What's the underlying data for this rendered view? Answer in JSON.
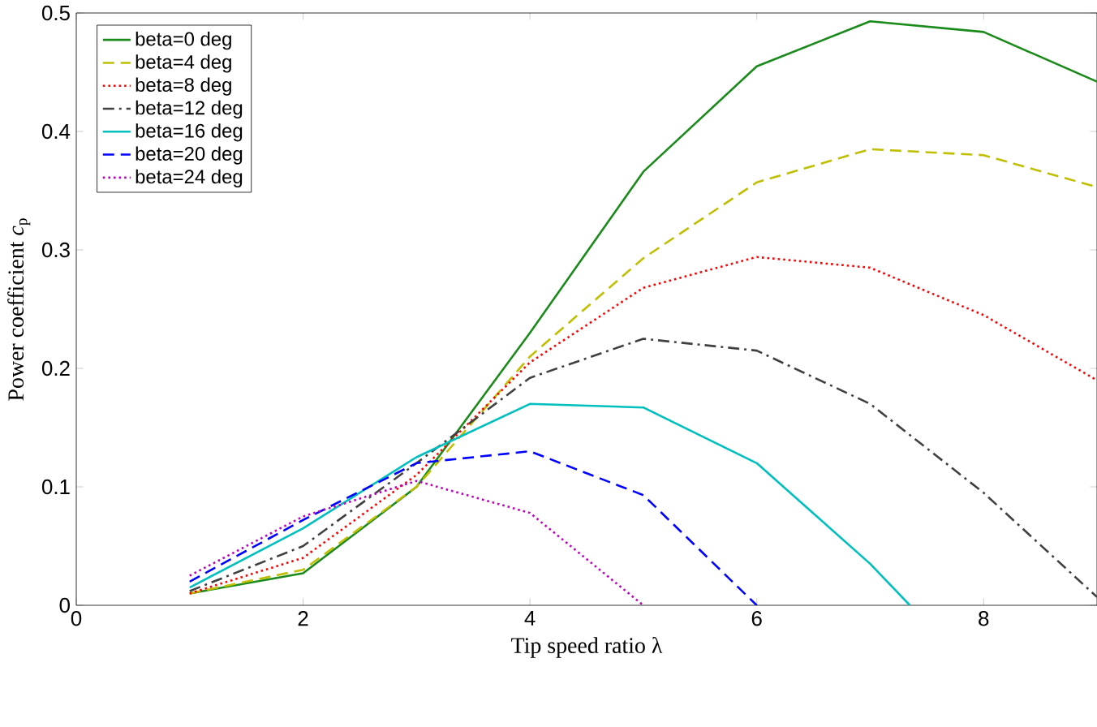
{
  "chart_data": {
    "type": "line",
    "xlabel": "Tip speed ratio λ",
    "ylabel": "Power coefficient *c*$_{p}$",
    "x": [
      1,
      2,
      3,
      4,
      5,
      6,
      7,
      8,
      9
    ],
    "series": [
      {
        "name": "beta=0 deg",
        "color": "#1a8a1a",
        "line_style": "solid",
        "values": [
          0.01,
          0.027,
          0.1,
          0.23,
          0.366,
          0.455,
          0.493,
          0.484,
          0.442
        ]
      },
      {
        "name": "beta=4 deg",
        "color": "#bfbf00",
        "line_style": "dashed",
        "values": [
          0.01,
          0.03,
          0.1,
          0.21,
          0.293,
          0.357,
          0.385,
          0.38,
          0.353
        ]
      },
      {
        "name": "beta=8 deg",
        "color": "#ff0000",
        "line_style": "dotted",
        "values": [
          0.01,
          0.04,
          0.11,
          0.205,
          0.268,
          0.294,
          0.285,
          0.245,
          0.19
        ]
      },
      {
        "name": "beta=12 deg",
        "color": "#404040",
        "line_style": "dashdot",
        "values": [
          0.012,
          0.05,
          0.12,
          0.192,
          0.225,
          0.215,
          0.17,
          0.095,
          0.007
        ]
      },
      {
        "name": "beta=16 deg",
        "color": "#00bfbf",
        "line_style": "solid",
        "x": [
          1,
          2,
          3,
          4,
          5,
          6,
          7,
          7.35
        ],
        "values": [
          0.015,
          0.065,
          0.125,
          0.17,
          0.167,
          0.12,
          0.035,
          0
        ]
      },
      {
        "name": "beta=20 deg",
        "color": "#0000ff",
        "line_style": "dashed",
        "x": [
          1,
          2,
          3,
          4,
          5,
          6
        ],
        "values": [
          0.02,
          0.072,
          0.12,
          0.13,
          0.093,
          0
        ]
      },
      {
        "name": "beta=24 deg",
        "color": "#bf00bf",
        "line_style": "dotted",
        "x": [
          1,
          2,
          3,
          4,
          5
        ],
        "values": [
          0.025,
          0.075,
          0.105,
          0.078,
          0
        ]
      }
    ],
    "xlim": [
      0,
      9
    ],
    "ylim": [
      0,
      0.5
    ],
    "xticks": [
      0,
      2,
      4,
      6,
      8
    ],
    "yticks": [
      0,
      0.1,
      0.2,
      0.3,
      0.4,
      0.5
    ],
    "grid": false,
    "legend": "top left",
    "marker": "none"
  }
}
